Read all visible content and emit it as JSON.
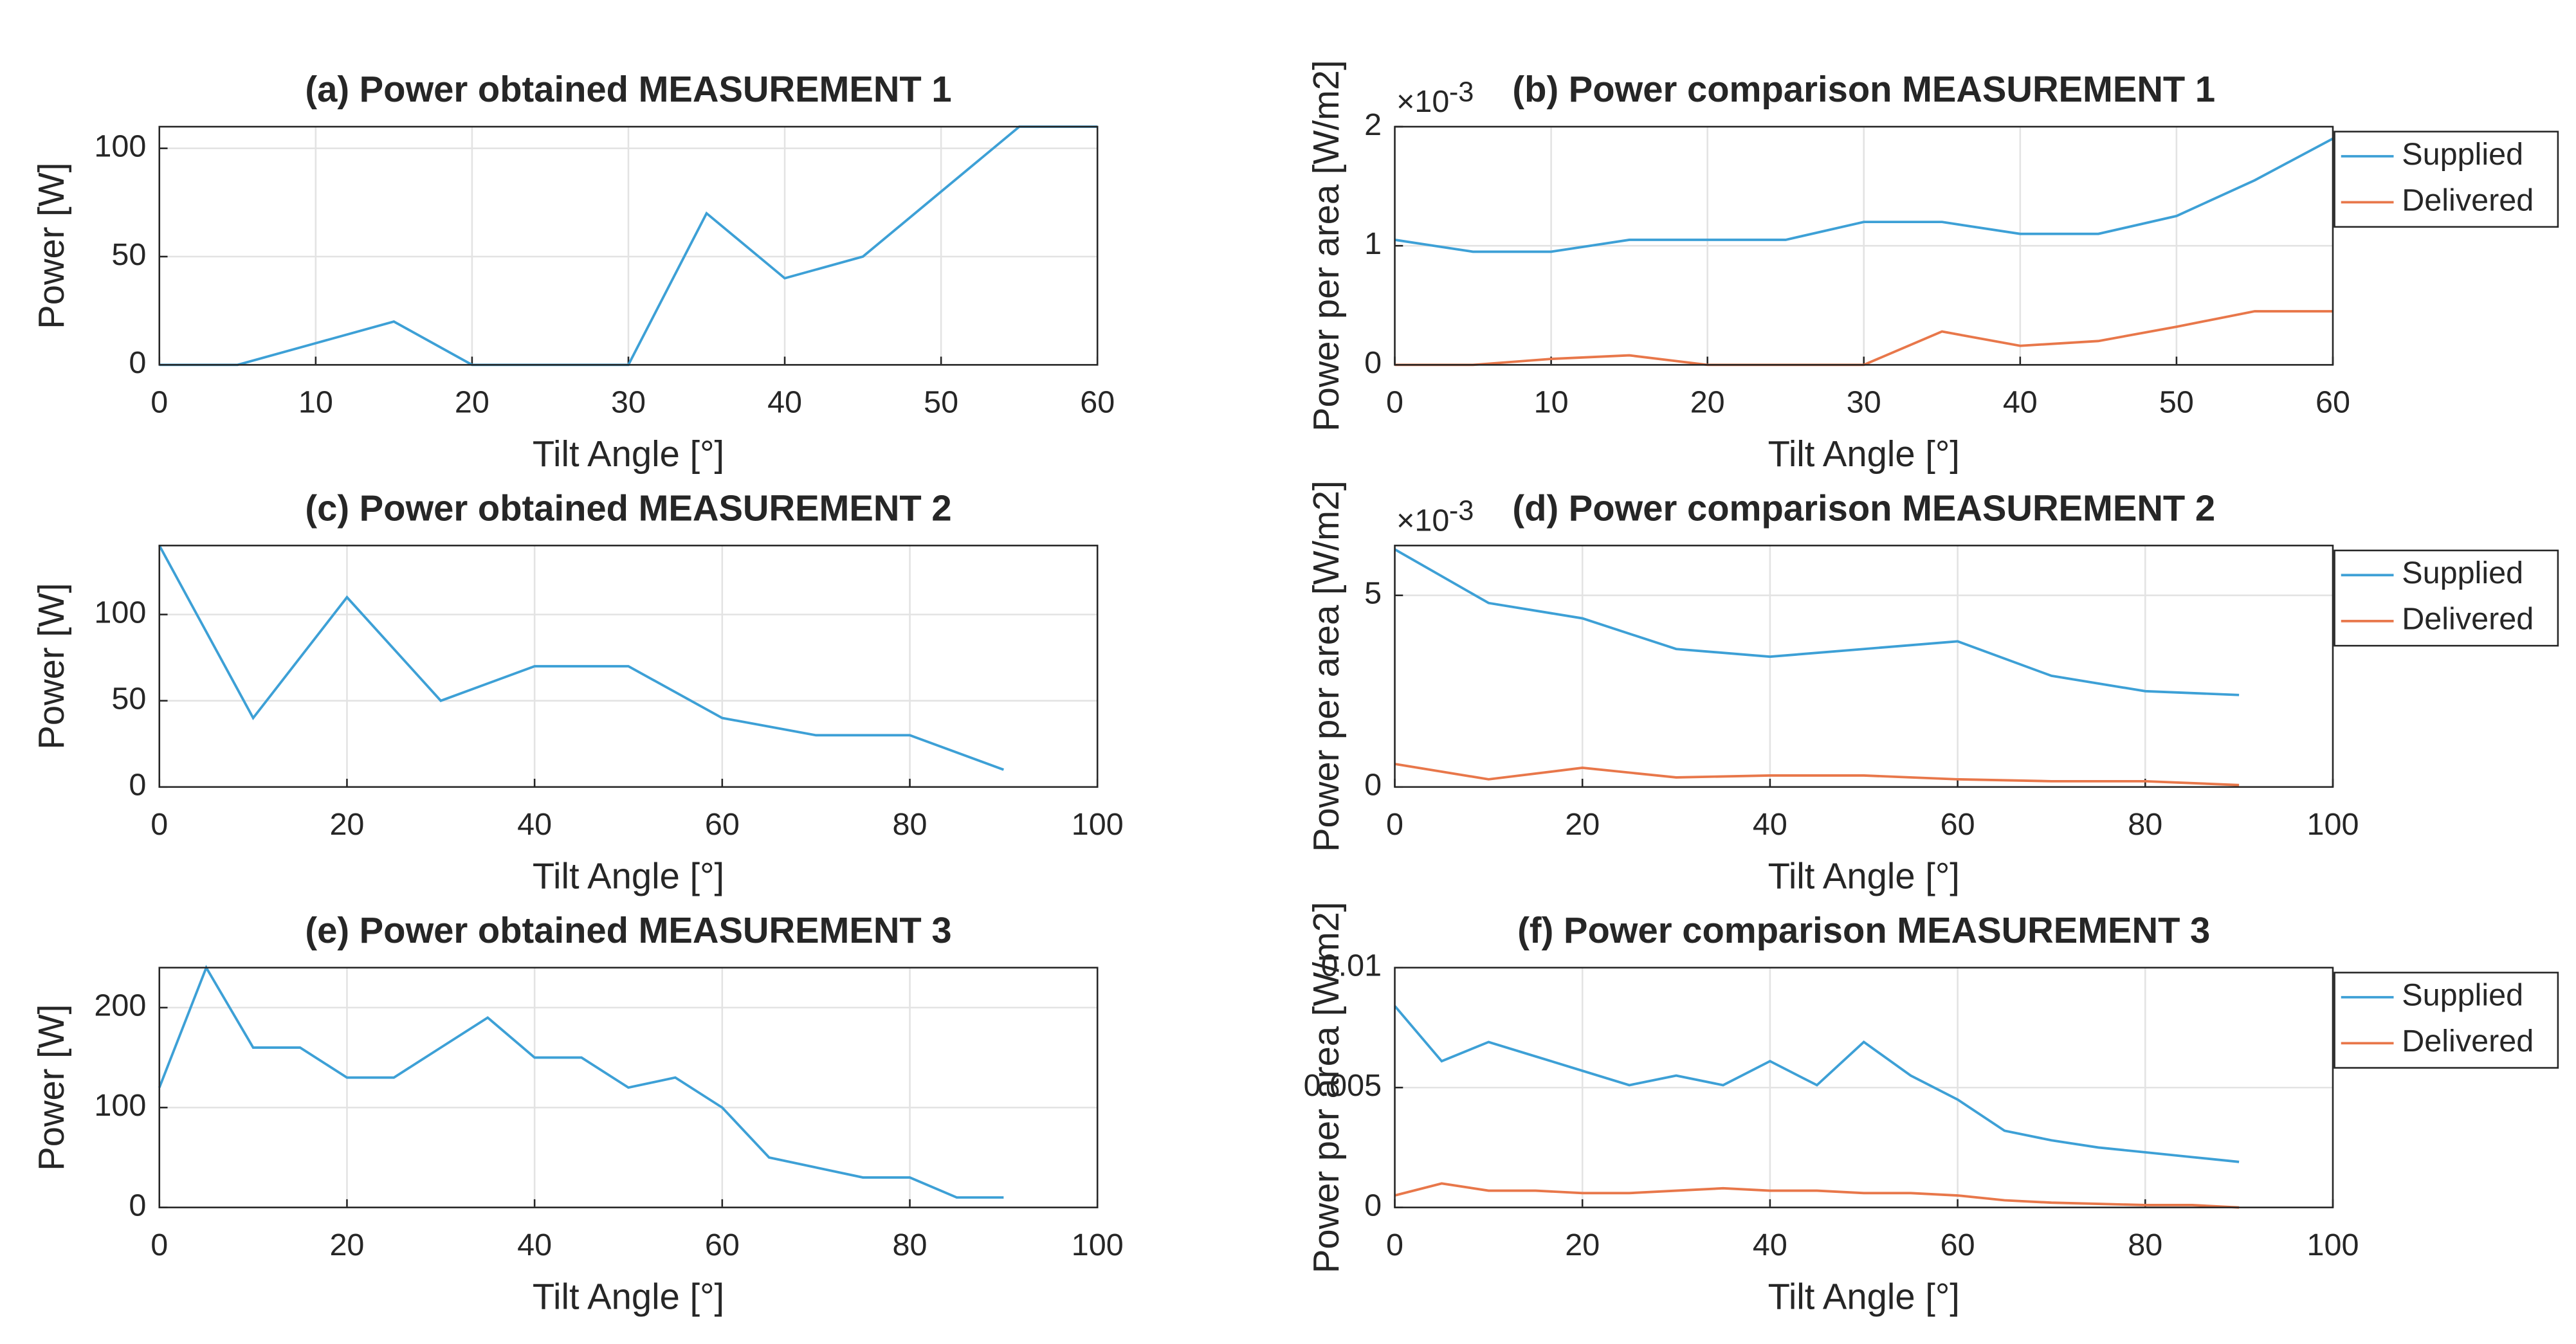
{
  "chart_data": [
    {
      "type": "line",
      "title": "(a) Power obtained MEASUREMENT 1",
      "xlabel": "Tilt Angle [°]",
      "ylabel": "Power [W]",
      "x": [
        0,
        5,
        10,
        15,
        20,
        25,
        30,
        35,
        40,
        45,
        50,
        55,
        60
      ],
      "series": [
        {
          "name": "Power",
          "color": "#3da0d6",
          "values": [
            0,
            0,
            10,
            20,
            0,
            0,
            0,
            70,
            40,
            50,
            80,
            110,
            110
          ]
        }
      ],
      "xlim": [
        0,
        60
      ],
      "xticks": [
        0,
        10,
        20,
        30,
        40,
        50,
        60
      ],
      "ylim": [
        0,
        110
      ],
      "yticks": [
        0,
        50,
        100
      ],
      "grid": true,
      "legend": false
    },
    {
      "type": "line",
      "title": "(b) Power comparison MEASUREMENT 1",
      "xlabel": "Tilt Angle [°]",
      "ylabel": "Power per area [W/m2]",
      "y_scale_text": "×10",
      "y_scale_power": "-3",
      "x": [
        0,
        5,
        10,
        15,
        20,
        25,
        30,
        35,
        40,
        45,
        50,
        55,
        60
      ],
      "series": [
        {
          "name": "Supplied",
          "color": "#3da0d6",
          "values": [
            0.00105,
            0.00095,
            0.00095,
            0.00105,
            0.00105,
            0.00105,
            0.0012,
            0.0012,
            0.0011,
            0.0011,
            0.00125,
            0.00155,
            0.0019
          ]
        },
        {
          "name": "Delivered",
          "color": "#e8774a",
          "values": [
            0,
            0,
            5e-05,
            8e-05,
            0,
            0,
            0,
            0.00028,
            0.00016,
            0.0002,
            0.00032,
            0.00045,
            0.00045
          ]
        }
      ],
      "xlim": [
        0,
        60
      ],
      "xticks": [
        0,
        10,
        20,
        30,
        40,
        50,
        60
      ],
      "ylim": [
        0,
        0.002
      ],
      "yticks": [
        0,
        {
          "value": 0.001,
          "label": "1"
        },
        {
          "value": 0.002,
          "label": "2"
        }
      ],
      "grid": true,
      "legend": "outside-right"
    },
    {
      "type": "line",
      "title": "(c) Power obtained MEASUREMENT 2",
      "xlabel": "Tilt Angle [°]",
      "ylabel": "Power [W]",
      "x": [
        0,
        10,
        20,
        30,
        40,
        50,
        60,
        70,
        80,
        90
      ],
      "series": [
        {
          "name": "Power",
          "color": "#3da0d6",
          "values": [
            140,
            40,
            110,
            50,
            70,
            70,
            40,
            30,
            30,
            10
          ]
        }
      ],
      "xlim": [
        0,
        100
      ],
      "xticks": [
        0,
        20,
        40,
        60,
        80,
        100
      ],
      "ylim": [
        0,
        140
      ],
      "yticks": [
        0,
        50,
        100
      ],
      "grid": true,
      "legend": false
    },
    {
      "type": "line",
      "title": "(d) Power comparison MEASUREMENT 2",
      "xlabel": "Tilt Angle [°]",
      "ylabel": "Power per area [W/m2]",
      "y_scale_text": "×10",
      "y_scale_power": "-3",
      "x": [
        0,
        10,
        20,
        30,
        40,
        50,
        60,
        70,
        80,
        90
      ],
      "series": [
        {
          "name": "Supplied",
          "color": "#3da0d6",
          "values": [
            0.0062,
            0.0048,
            0.0044,
            0.0036,
            0.0034,
            0.0036,
            0.0038,
            0.0029,
            0.0025,
            0.0024
          ]
        },
        {
          "name": "Delivered",
          "color": "#e8774a",
          "values": [
            0.0006,
            0.0002,
            0.0005,
            0.00025,
            0.0003,
            0.0003,
            0.0002,
            0.00015,
            0.00015,
            5e-05
          ]
        }
      ],
      "xlim": [
        0,
        100
      ],
      "xticks": [
        0,
        20,
        40,
        60,
        80,
        100
      ],
      "ylim": [
        0,
        0.0063
      ],
      "yticks": [
        0,
        {
          "value": 0.005,
          "label": "5"
        }
      ],
      "grid": true,
      "legend": "outside-right"
    },
    {
      "type": "line",
      "title": "(e) Power obtained MEASUREMENT 3",
      "xlabel": "Tilt Angle [°]",
      "ylabel": "Power [W]",
      "x": [
        0,
        5,
        10,
        15,
        20,
        25,
        30,
        35,
        40,
        45,
        50,
        55,
        60,
        65,
        70,
        75,
        80,
        85,
        90
      ],
      "series": [
        {
          "name": "Power",
          "color": "#3da0d6",
          "values": [
            120,
            240,
            160,
            160,
            130,
            130,
            160,
            190,
            150,
            150,
            120,
            130,
            100,
            50,
            40,
            30,
            30,
            10,
            10
          ]
        }
      ],
      "xlim": [
        0,
        100
      ],
      "xticks": [
        0,
        20,
        40,
        60,
        80,
        100
      ],
      "ylim": [
        0,
        240
      ],
      "yticks": [
        0,
        100,
        200
      ],
      "grid": true,
      "legend": false
    },
    {
      "type": "line",
      "title": "(f) Power comparison MEASUREMENT 3",
      "xlabel": "Tilt Angle [°]",
      "ylabel": "Power per area [W/m2]",
      "x": [
        0,
        5,
        10,
        15,
        20,
        25,
        30,
        35,
        40,
        45,
        50,
        55,
        60,
        65,
        70,
        75,
        80,
        85,
        90
      ],
      "series": [
        {
          "name": "Supplied",
          "color": "#3da0d6",
          "values": [
            0.0084,
            0.0061,
            0.0069,
            0.0063,
            0.0057,
            0.0051,
            0.0055,
            0.0051,
            0.0061,
            0.0051,
            0.0069,
            0.0055,
            0.0045,
            0.0032,
            0.0028,
            0.0025,
            0.0023,
            0.0021,
            0.0019
          ]
        },
        {
          "name": "Delivered",
          "color": "#e8774a",
          "values": [
            0.0005,
            0.001,
            0.0007,
            0.0007,
            0.0006,
            0.0006,
            0.0007,
            0.0008,
            0.0007,
            0.0007,
            0.0006,
            0.0006,
            0.0005,
            0.0003,
            0.0002,
            0.00015,
            0.0001,
            0.0001,
            0
          ]
        }
      ],
      "xlim": [
        0,
        100
      ],
      "xticks": [
        0,
        20,
        40,
        60,
        80,
        100
      ],
      "ylim": [
        0,
        0.01
      ],
      "yticks": [
        0,
        0.005,
        0.01
      ],
      "grid": true,
      "legend": "outside-right"
    }
  ]
}
